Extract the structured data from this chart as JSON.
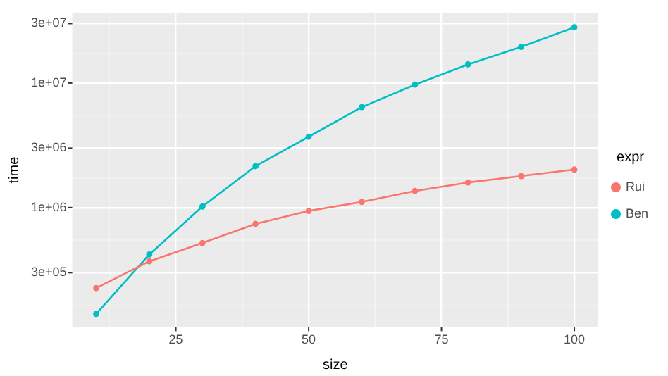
{
  "chart_data": {
    "type": "line",
    "xlabel": "size",
    "ylabel": "time",
    "legend_title": "expr",
    "legend": "right",
    "grid": true,
    "log": "y",
    "marker": "circle",
    "line_style": "solid",
    "x": [
      10,
      20,
      30,
      40,
      50,
      60,
      70,
      80,
      90,
      100
    ],
    "series": [
      {
        "name": "Rui",
        "color": "#f8766d",
        "values": [
          226000,
          370000,
          520000,
          740000,
          940000,
          1110000,
          1360000,
          1590000,
          1790000,
          2020000
        ]
      },
      {
        "name": "Ben",
        "color": "#00bfc4",
        "values": [
          140000,
          420000,
          1020000,
          2150000,
          3700000,
          6400000,
          9700000,
          14100000,
          19500000,
          28000000
        ]
      }
    ],
    "xlim": [
      5.5,
      104.5
    ],
    "xticks": [
      {
        "value": 12.5,
        "label": null
      },
      25,
      {
        "value": 37.5,
        "label": null
      },
      50,
      {
        "value": 62.5,
        "label": null
      },
      75,
      {
        "value": 87.5,
        "label": null
      },
      100
    ],
    "ylim": [
      110000,
      36300000
    ],
    "yticks": [
      {
        "value": 164000,
        "label": null
      },
      {
        "value": 300000,
        "label": "3e+05"
      },
      {
        "value": 548000,
        "label": null
      },
      {
        "value": 1000000,
        "label": "1e+06"
      },
      {
        "value": 1730000,
        "label": null
      },
      {
        "value": 3000000,
        "label": "3e+06"
      },
      {
        "value": 5480000,
        "label": null
      },
      {
        "value": 10000000,
        "label": "1e+07"
      },
      {
        "value": 17300000,
        "label": null
      },
      {
        "value": 30000000,
        "label": "3e+07"
      }
    ]
  }
}
